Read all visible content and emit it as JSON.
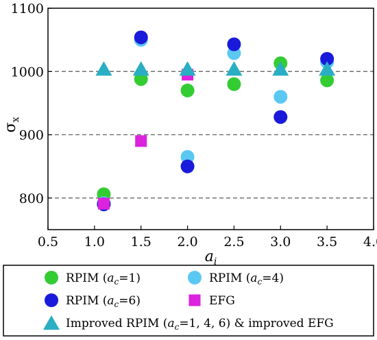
{
  "chart_data": {
    "type": "scatter",
    "title": "",
    "xlabel": {
      "base": "a",
      "sub": "i"
    },
    "ylabel": {
      "base": "σ",
      "sub": "x"
    },
    "xlim": [
      0.5,
      4.0
    ],
    "ylim": [
      750,
      1100
    ],
    "xticks": [
      0.5,
      1.0,
      1.5,
      2.0,
      2.5,
      3.0,
      3.5,
      4.0
    ],
    "xtick_labels": [
      "0.5",
      "1.0",
      "1.5",
      "2.0",
      "2.5",
      "3.0",
      "3.5",
      "4.0"
    ],
    "yticks": [
      800,
      900,
      1000,
      1100
    ],
    "ytick_labels": [
      "800",
      "900",
      "1000",
      "1100"
    ],
    "reference_lines": [
      800,
      900,
      1000
    ],
    "grid": false,
    "legend_position": "bottom",
    "series": [
      {
        "name": "RPIM (ac=1)",
        "label_parts": [
          "RPIM (",
          "a",
          "c",
          "=1)"
        ],
        "marker": "circle",
        "color": "#33cc33",
        "points": [
          [
            1.1,
            806
          ],
          [
            1.5,
            988
          ],
          [
            2.0,
            970
          ],
          [
            2.5,
            980
          ],
          [
            3.0,
            1013
          ],
          [
            3.5,
            986
          ]
        ]
      },
      {
        "name": "RPIM (ac=4)",
        "label_parts": [
          "RPIM (",
          "a",
          "c",
          "=4)"
        ],
        "marker": "circle",
        "color": "#5bc8f2",
        "points": [
          [
            1.1,
            792
          ],
          [
            1.5,
            1050
          ],
          [
            2.0,
            865
          ],
          [
            2.5,
            1029
          ],
          [
            3.0,
            960
          ],
          [
            3.5,
            1015
          ]
        ]
      },
      {
        "name": "RPIM (ac=6)",
        "label_parts": [
          "RPIM (",
          "a",
          "c",
          "=6)"
        ],
        "marker": "circle",
        "color": "#1a1adb",
        "points": [
          [
            1.1,
            790
          ],
          [
            1.5,
            1054
          ],
          [
            2.0,
            850
          ],
          [
            2.5,
            1043
          ],
          [
            3.0,
            928
          ],
          [
            3.5,
            1020
          ]
        ]
      },
      {
        "name": "EFG",
        "label_parts": [
          "EFG"
        ],
        "marker": "square",
        "color": "#dd22dd",
        "points": [
          [
            1.1,
            791
          ],
          [
            1.5,
            890
          ],
          [
            2.0,
            995
          ]
        ]
      },
      {
        "name": "Improved RPIM (ac=1, 4, 6) & improved EFG",
        "label_parts": [
          "Improved RPIM (",
          "a",
          "c",
          "=1, 4, 6) & improved EFG"
        ],
        "marker": "triangle",
        "color": "#29aec4",
        "points": [
          [
            1.1,
            1002
          ],
          [
            1.5,
            1002
          ],
          [
            2.0,
            1002
          ],
          [
            2.5,
            1002
          ],
          [
            3.0,
            1002
          ],
          [
            3.5,
            1002
          ]
        ]
      }
    ]
  }
}
